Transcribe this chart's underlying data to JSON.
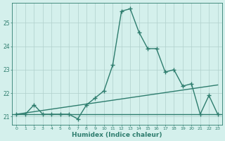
{
  "x": [
    0,
    1,
    2,
    3,
    4,
    5,
    6,
    7,
    8,
    9,
    10,
    11,
    12,
    13,
    14,
    15,
    16,
    17,
    18,
    19,
    20,
    21,
    22,
    23
  ],
  "y_main": [
    21.1,
    21.1,
    21.5,
    21.1,
    21.1,
    21.1,
    21.1,
    20.9,
    21.5,
    21.8,
    22.1,
    23.2,
    25.5,
    25.6,
    24.6,
    23.9,
    23.9,
    22.9,
    23.0,
    22.3,
    22.4,
    21.1,
    21.9,
    21.1
  ],
  "trend_x": [
    0,
    23
  ],
  "trend_y": [
    21.1,
    22.35
  ],
  "flat_y": 21.1,
  "line_color": "#2e7d6e",
  "bg_color": "#d4f0ec",
  "grid_color": "#b0d0cc",
  "axis_color": "#2e7d6e",
  "tick_color": "#2e7d6e",
  "xlabel": "Humidex (Indice chaleur)",
  "ylim": [
    20.65,
    25.85
  ],
  "xlim": [
    -0.5,
    23.5
  ],
  "yticks": [
    21,
    22,
    23,
    24,
    25
  ],
  "xticks": [
    0,
    1,
    2,
    3,
    4,
    5,
    6,
    7,
    8,
    9,
    10,
    11,
    12,
    13,
    14,
    15,
    16,
    17,
    18,
    19,
    20,
    21,
    22,
    23
  ],
  "marker": "+",
  "markersize": 4,
  "linewidth": 1.0
}
